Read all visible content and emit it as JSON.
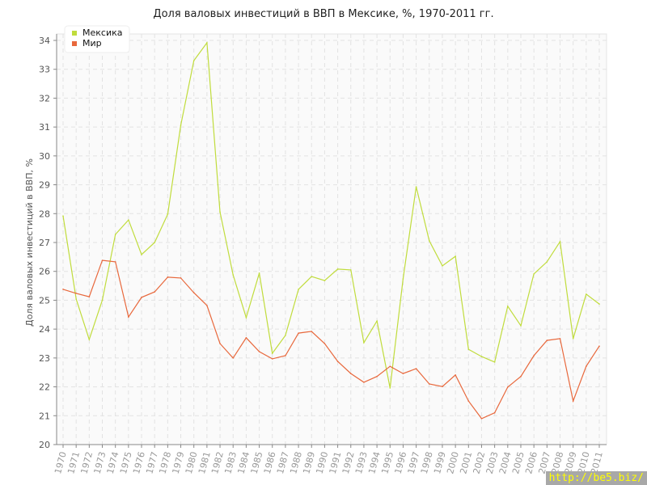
{
  "chart_data": {
    "type": "line",
    "title": "Доля валовых инвестиций в ВВП в Мексике, %, 1970-2011 гг.",
    "xlabel": "",
    "ylabel": "Доля валовых инвестиций в ВВП, %",
    "ylim": [
      20,
      34
    ],
    "yticks": [
      20,
      21,
      22,
      23,
      24,
      25,
      26,
      27,
      28,
      29,
      30,
      31,
      32,
      33,
      34
    ],
    "grid": true,
    "legend_placement": "top-left",
    "x": [
      1970,
      1971,
      1972,
      1973,
      1974,
      1975,
      1976,
      1977,
      1978,
      1979,
      1980,
      1981,
      1982,
      1983,
      1984,
      1985,
      1986,
      1987,
      1988,
      1989,
      1990,
      1991,
      1992,
      1993,
      1994,
      1995,
      1996,
      1997,
      1998,
      1999,
      2000,
      2001,
      2002,
      2003,
      2004,
      2005,
      2006,
      2007,
      2008,
      2009,
      2010,
      2011
    ],
    "series": [
      {
        "name": "Мексика",
        "color": "#c0dc3c",
        "values": [
          27.92,
          25.04,
          23.64,
          25.0,
          27.28,
          27.78,
          26.58,
          27.0,
          27.98,
          31.06,
          33.3,
          33.92,
          28.06,
          25.88,
          24.4,
          25.94,
          23.16,
          23.78,
          25.38,
          25.82,
          25.68,
          26.08,
          26.05,
          23.53,
          24.28,
          21.96,
          25.74,
          28.93,
          27.06,
          26.19,
          26.52,
          23.3,
          23.05,
          22.86,
          24.79,
          24.12,
          25.91,
          26.33,
          27.03,
          23.67,
          25.21,
          24.87
        ]
      },
      {
        "name": "Мир",
        "color": "#e8683c",
        "values": [
          25.38,
          25.24,
          25.12,
          26.38,
          26.33,
          24.42,
          25.1,
          25.29,
          25.8,
          25.77,
          25.26,
          24.82,
          23.5,
          23.0,
          23.7,
          23.22,
          22.97,
          23.08,
          23.86,
          23.92,
          23.5,
          22.88,
          22.46,
          22.16,
          22.36,
          22.71,
          22.46,
          22.63,
          22.1,
          22.01,
          22.41,
          21.51,
          20.9,
          21.1,
          21.99,
          22.36,
          23.08,
          23.61,
          23.67,
          21.51,
          22.71,
          23.41
        ]
      }
    ]
  },
  "watermark": "http://be5.biz/"
}
